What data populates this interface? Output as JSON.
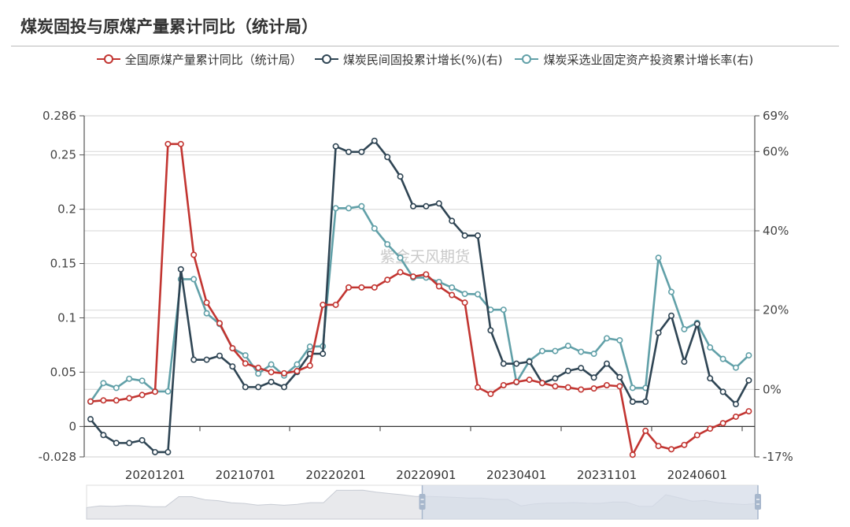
{
  "header": {
    "title": "煤炭固投与原煤产量累计同比（统计局）"
  },
  "legend": [
    {
      "label": "全国原煤产量累计同比（统计局）",
      "color": "#c23531",
      "axis": "left"
    },
    {
      "label": "煤炭民间固投累计增长(%)(右)",
      "color": "#2f4554",
      "axis": "right"
    },
    {
      "label": "煤炭采选业固定资产投资累计增长率(右)",
      "color": "#61a0a8",
      "axis": "right"
    }
  ],
  "watermark": "紫金天风期货",
  "colors": {
    "red": "#c23531",
    "navy": "#2f4554",
    "teal": "#61a0a8",
    "grid": "#dddddd",
    "axis": "#555555",
    "dataZoomFill": "#d6dce8",
    "dataZoomHandle": "#a7b7cc"
  },
  "dataZoom": {
    "start_label": "20220901",
    "end_label": "20241001",
    "start_pct": 50,
    "end_pct": 100
  },
  "chart_data": {
    "type": "line",
    "title": "煤炭固投与原煤产量累计同比（统计局）",
    "xlabel": "",
    "ylabel_left": "",
    "ylabel_right": "",
    "ylim_left": [
      -0.028,
      0.286
    ],
    "ylim_right": [
      -17,
      69
    ],
    "left_ticks": [
      "0.286",
      "0.25",
      "0.2",
      "0.15",
      "0.1",
      "0.05",
      "0",
      "-0.028"
    ],
    "right_ticks": [
      "69%",
      "60%",
      "40%",
      "20%",
      "0%",
      "-17%"
    ],
    "x_tick_labels": [
      "20201201",
      "20210701",
      "20220201",
      "20220901",
      "20230401",
      "20231101",
      "20240601"
    ],
    "grid": true,
    "legend_position": "top",
    "x": [
      "20200701",
      "20200801",
      "20200901",
      "20201001",
      "20201101",
      "20201201",
      "20210101",
      "20210201",
      "20210301",
      "20210401",
      "20210501",
      "20210601",
      "20210701",
      "20210801",
      "20210901",
      "20211001",
      "20211101",
      "20211201",
      "20220101",
      "20220201",
      "20220301",
      "20220401",
      "20220501",
      "20220601",
      "20220701",
      "20220801",
      "20220901",
      "20221001",
      "20221101",
      "20221201",
      "20230101",
      "20230201",
      "20230301",
      "20230401",
      "20230501",
      "20230601",
      "20230701",
      "20230801",
      "20230901",
      "20231001",
      "20231101",
      "20231201",
      "20240101",
      "20240201",
      "20240301",
      "20240401",
      "20240501",
      "20240601",
      "20240701",
      "20240801",
      "20240901",
      "20241001"
    ],
    "series": [
      {
        "name": "全国原煤产量累计同比（统计局）",
        "axis": "left",
        "values": [
          0.023,
          0.024,
          0.024,
          0.026,
          0.029,
          0.032,
          0.26,
          0.26,
          0.158,
          0.114,
          0.095,
          0.072,
          0.058,
          0.054,
          0.05,
          0.049,
          0.051,
          0.056,
          0.112,
          0.112,
          0.128,
          0.128,
          0.128,
          0.135,
          0.142,
          0.138,
          0.14,
          0.129,
          0.121,
          0.114,
          0.036,
          0.03,
          0.038,
          0.041,
          0.043,
          0.04,
          0.037,
          0.036,
          0.034,
          0.035,
          0.038,
          0.037,
          -0.026,
          -0.004,
          -0.018,
          -0.021,
          -0.017,
          -0.008,
          -0.002,
          0.003,
          0.009,
          0.014
        ]
      },
      {
        "name": "煤炭民间固投累计增长(%)(右)",
        "axis": "right",
        "values": [
          -7.5,
          -11.5,
          -13.5,
          -13.5,
          -12.8,
          -15.8,
          -15.8,
          30.3,
          7.5,
          7.5,
          8.5,
          5.8,
          0.6,
          0.6,
          1.9,
          0.6,
          4.4,
          9.0,
          9.0,
          61.3,
          59.9,
          59.9,
          62.7,
          58.6,
          53.7,
          46.2,
          46.2,
          46.9,
          42.5,
          38.8,
          38.8,
          14.9,
          6.5,
          6.5,
          7.0,
          1.6,
          2.8,
          4.7,
          5.4,
          3.0,
          6.5,
          3.1,
          -3.1,
          -3.1,
          14.3,
          18.6,
          7.0,
          16.5,
          2.8,
          -0.6,
          -3.7,
          2.3
        ]
      },
      {
        "name": "煤炭采选业固定资产投资累计增长率(右)",
        "axis": "right",
        "values": [
          -3.1,
          1.6,
          0.4,
          2.7,
          2.2,
          -0.5,
          -0.5,
          27.8,
          27.8,
          19.2,
          16.5,
          10.4,
          8.6,
          4.0,
          6.3,
          3.5,
          6.3,
          10.8,
          10.9,
          45.7,
          45.7,
          46.2,
          40.6,
          36.6,
          33.2,
          28.2,
          28.2,
          27.1,
          25.7,
          24.1,
          24.0,
          20.1,
          20.1,
          1.8,
          7.2,
          9.7,
          9.7,
          11.0,
          9.5,
          9.0,
          12.9,
          12.4,
          0.4,
          0.4,
          33.2,
          24.6,
          15.2,
          16.8,
          10.6,
          7.7,
          5.5,
          8.6
        ]
      }
    ]
  }
}
